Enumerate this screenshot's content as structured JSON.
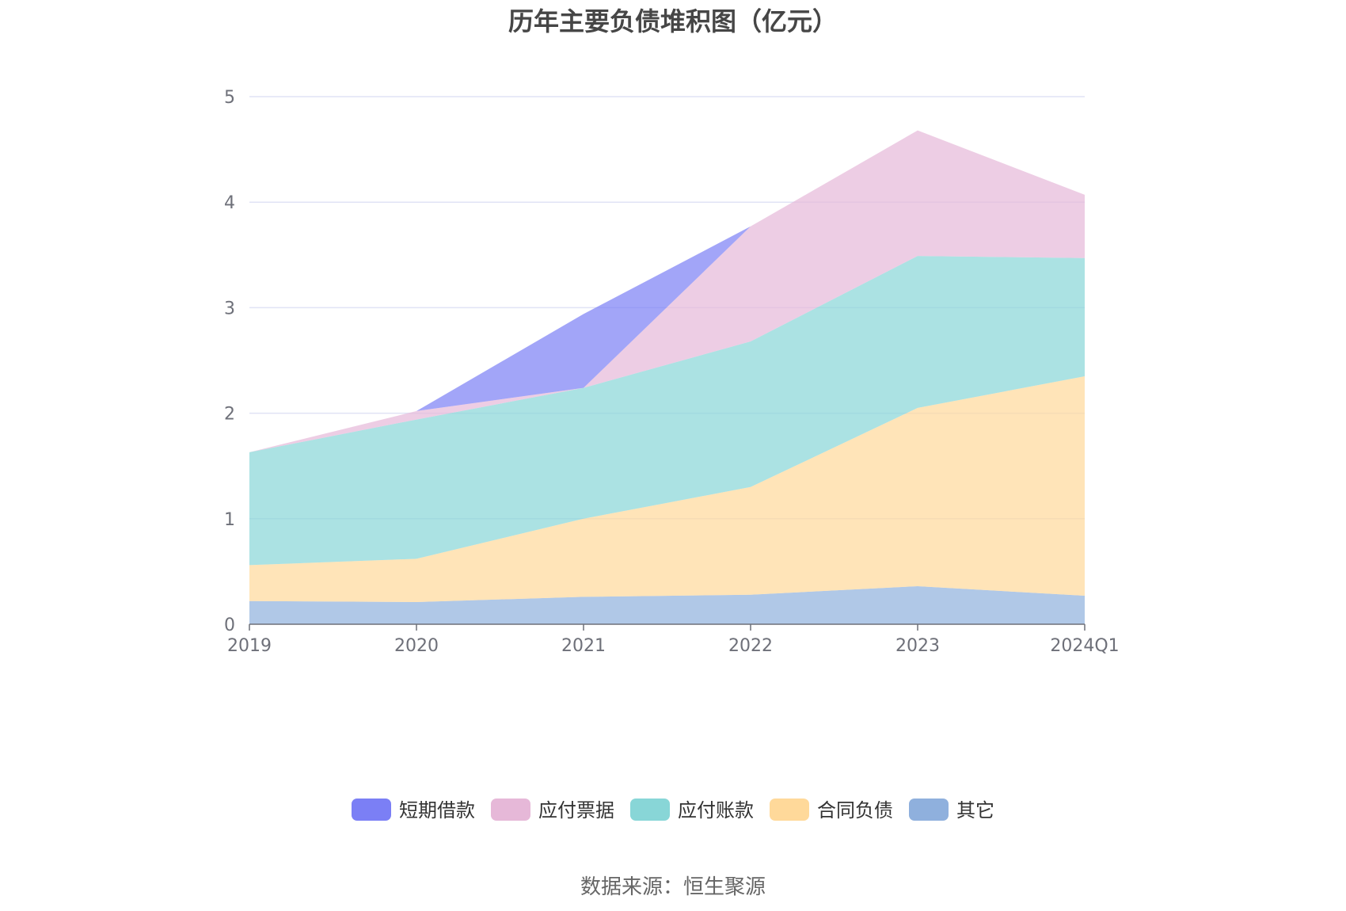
{
  "chart_data": {
    "type": "area",
    "stacked": true,
    "title": "历年主要负债堆积图（亿元）",
    "categories": [
      "2019",
      "2020",
      "2021",
      "2022",
      "2023",
      "2024Q1"
    ],
    "ylim": [
      0,
      5
    ],
    "yticks": [
      0,
      1,
      2,
      3,
      4,
      5
    ],
    "grid": true,
    "legend_position": "bottom",
    "series": [
      {
        "name": "其它",
        "color": "#8fb0dd",
        "values": [
          0.22,
          0.21,
          0.26,
          0.28,
          0.36,
          0.27
        ]
      },
      {
        "name": "合同负债",
        "color": "#ffd99a",
        "values": [
          0.34,
          0.41,
          0.74,
          1.02,
          1.69,
          2.08
        ]
      },
      {
        "name": "应付账款",
        "color": "#88d6d7",
        "values": [
          1.07,
          1.32,
          1.24,
          1.38,
          1.44,
          1.12
        ]
      },
      {
        "name": "应付票据",
        "color": "#e6b8d8",
        "values": [
          0.0,
          0.08,
          0.0,
          1.09,
          1.19,
          0.6
        ]
      },
      {
        "name": "短期借款",
        "color": "#7b7ff5",
        "values": [
          0.0,
          0.0,
          0.7,
          0.0,
          0.0,
          0.0
        ]
      }
    ],
    "legend_order": [
      "短期借款",
      "应付票据",
      "应付账款",
      "合同负债",
      "其它"
    ]
  },
  "source_text": "数据来源：恒生聚源"
}
